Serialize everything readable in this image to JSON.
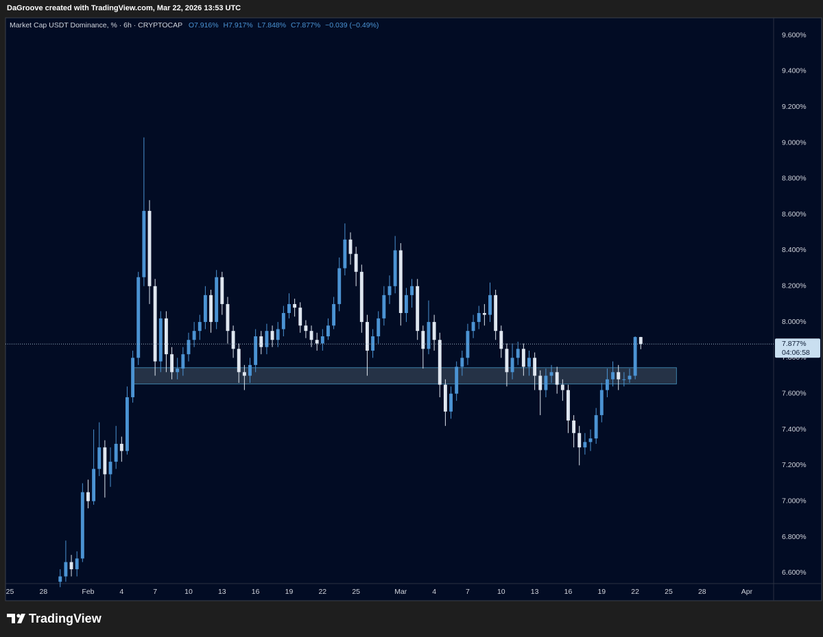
{
  "header": "DaGroove created with TradingView.com, Mar 22, 2026 13:53 UTC",
  "footer_brand": "TradingView",
  "chart_data": {
    "type": "candlestick",
    "title": "Market Cap USDT Dominance, % · 6h · CRYPTOCAP",
    "legend_values": [
      "O7.916%",
      "H7.917%",
      "L7.848%",
      "C7.877%",
      "−0.039 (−0.49%)"
    ],
    "up_color": "#4b93d3",
    "down_color": "#dfe6ef",
    "grid": false,
    "xlim": [
      -0.4,
      68.4
    ],
    "xticks": [
      {
        "value": 0,
        "label": "25"
      },
      {
        "value": 3,
        "label": "28"
      },
      {
        "value": 7,
        "label": "Feb"
      },
      {
        "value": 10,
        "label": "4"
      },
      {
        "value": 13,
        "label": "7"
      },
      {
        "value": 16,
        "label": "10"
      },
      {
        "value": 19,
        "label": "13"
      },
      {
        "value": 22,
        "label": "16"
      },
      {
        "value": 25,
        "label": "19"
      },
      {
        "value": 28,
        "label": "22"
      },
      {
        "value": 31,
        "label": "25"
      },
      {
        "value": 35,
        "label": "Mar"
      },
      {
        "value": 38,
        "label": "4"
      },
      {
        "value": 41,
        "label": "7"
      },
      {
        "value": 44,
        "label": "10"
      },
      {
        "value": 47,
        "label": "13"
      },
      {
        "value": 50,
        "label": "16"
      },
      {
        "value": 53,
        "label": "19"
      },
      {
        "value": 56,
        "label": "22"
      },
      {
        "value": 59,
        "label": "25"
      },
      {
        "value": 62,
        "label": "28"
      },
      {
        "value": 66,
        "label": "Apr"
      }
    ],
    "ylim": [
      6.54,
      9.69
    ],
    "yticks": [
      {
        "value": 6.6,
        "label": "6.600%"
      },
      {
        "value": 6.8,
        "label": "6.800%"
      },
      {
        "value": 7.0,
        "label": "7.000%"
      },
      {
        "value": 7.2,
        "label": "7.200%"
      },
      {
        "value": 7.4,
        "label": "7.400%"
      },
      {
        "value": 7.6,
        "label": "7.600%"
      },
      {
        "value": 7.8,
        "label": "7.800%"
      },
      {
        "value": 8.0,
        "label": "8.000%"
      },
      {
        "value": 8.2,
        "label": "8.200%"
      },
      {
        "value": 8.4,
        "label": "8.400%"
      },
      {
        "value": 8.6,
        "label": "8.600%"
      },
      {
        "value": 8.8,
        "label": "8.800%"
      },
      {
        "value": 9.0,
        "label": "9.000%"
      },
      {
        "value": 9.2,
        "label": "9.200%"
      },
      {
        "value": 9.4,
        "label": "9.400%"
      },
      {
        "value": 9.6,
        "label": "9.600%"
      }
    ],
    "last_price": {
      "value": 7.877,
      "label": "7.877%"
    },
    "countdown": "04:06:58",
    "zone": {
      "x": [
        11.1,
        59.7
      ],
      "y": [
        7.654,
        7.745
      ],
      "color": "#2b3a4c"
    },
    "x": [
      4.5,
      5,
      5.5,
      6,
      6.5,
      7,
      7.5,
      8,
      8.5,
      9,
      9.5,
      10,
      10.5,
      11,
      11.5,
      12,
      12.5,
      13,
      13.5,
      14,
      14.5,
      15,
      15.5,
      16,
      16.5,
      17,
      17.5,
      18,
      18.5,
      19,
      19.5,
      20,
      20.5,
      21,
      21.5,
      22,
      22.5,
      23,
      23.5,
      24,
      24.5,
      25,
      25.5,
      26,
      26.5,
      27,
      27.5,
      28,
      28.5,
      29,
      29.5,
      30,
      30.5,
      31,
      31.5,
      32,
      32.5,
      33,
      33.5,
      34,
      34.5,
      35,
      35.5,
      36,
      36.5,
      37,
      37.5,
      38,
      38.5,
      39,
      39.5,
      40,
      40.5,
      41,
      41.5,
      42,
      42.5,
      43,
      43.5,
      44,
      44.5,
      45,
      45.5,
      46,
      46.5,
      47,
      47.5,
      48,
      48.5,
      49,
      49.5,
      50,
      50.5,
      51,
      51.5,
      52,
      52.5,
      53,
      53.5,
      54,
      54.5,
      55,
      55.5,
      56,
      56.5
    ],
    "open": [
      6.55,
      6.58,
      6.66,
      6.62,
      6.68,
      7.05,
      7.0,
      7.18,
      7.3,
      7.15,
      7.22,
      7.32,
      7.28,
      7.58,
      7.8,
      8.25,
      8.62,
      8.2,
      7.78,
      8.02,
      7.82,
      7.72,
      7.74,
      7.82,
      7.9,
      7.95,
      8.0,
      8.15,
      8.0,
      8.25,
      8.1,
      7.95,
      7.85,
      7.72,
      7.7,
      7.76,
      7.92,
      7.86,
      7.95,
      7.9,
      7.96,
      8.05,
      8.1,
      8.08,
      7.98,
      7.95,
      7.9,
      7.88,
      7.92,
      7.98,
      8.1,
      8.3,
      8.46,
      8.38,
      8.28,
      8.0,
      7.84,
      7.92,
      8.02,
      8.15,
      8.2,
      8.4,
      8.05,
      8.15,
      8.2,
      7.95,
      7.85,
      8.0,
      7.9,
      7.65,
      7.5,
      7.6,
      7.75,
      7.8,
      7.95,
      8.0,
      8.05,
      8.04,
      8.15,
      7.95,
      7.85,
      7.72,
      7.8,
      7.85,
      7.75,
      7.8,
      7.7,
      7.62,
      7.7,
      7.72,
      7.65,
      7.62,
      7.45,
      7.38,
      7.3,
      7.33,
      7.35,
      7.48,
      7.62,
      7.68,
      7.72,
      7.68,
      7.68,
      7.7,
      7.916
    ],
    "high": [
      6.62,
      6.78,
      6.7,
      6.72,
      7.1,
      7.12,
      7.4,
      7.44,
      7.34,
      7.3,
      7.42,
      7.36,
      7.64,
      7.84,
      8.28,
      9.03,
      8.68,
      8.24,
      8.06,
      8.06,
      7.86,
      7.8,
      7.86,
      7.94,
      8.0,
      8.04,
      8.2,
      8.18,
      8.29,
      8.28,
      8.14,
      7.98,
      7.88,
      7.76,
      7.8,
      7.96,
      7.95,
      7.99,
      7.98,
      8.0,
      8.09,
      8.16,
      8.13,
      8.11,
      8.01,
      7.98,
      7.94,
      7.96,
      8.02,
      8.14,
      8.36,
      8.55,
      8.5,
      8.42,
      8.32,
      8.04,
      7.96,
      8.06,
      8.2,
      8.26,
      8.48,
      8.44,
      8.19,
      8.24,
      8.24,
      7.98,
      8.12,
      8.04,
      7.94,
      7.68,
      7.64,
      7.78,
      7.84,
      7.99,
      8.04,
      8.09,
      8.1,
      8.22,
      8.18,
      7.98,
      7.88,
      7.88,
      7.89,
      7.88,
      7.84,
      7.83,
      7.73,
      7.74,
      7.76,
      7.75,
      7.68,
      7.65,
      7.48,
      7.42,
      7.38,
      7.4,
      7.52,
      7.66,
      7.74,
      7.78,
      7.76,
      7.72,
      7.74,
      7.92,
      7.917
    ],
    "low": [
      6.52,
      6.55,
      6.58,
      6.58,
      6.66,
      6.96,
      6.98,
      7.14,
      7.02,
      7.08,
      7.18,
      7.22,
      7.26,
      7.55,
      7.76,
      8.2,
      8.1,
      7.7,
      7.72,
      7.72,
      7.68,
      7.68,
      7.7,
      7.78,
      7.86,
      7.9,
      7.96,
      7.94,
      7.96,
      8.04,
      7.88,
      7.8,
      7.66,
      7.62,
      7.66,
      7.72,
      7.82,
      7.82,
      7.86,
      7.86,
      7.92,
      8.02,
      8.03,
      7.94,
      7.91,
      7.86,
      7.84,
      7.84,
      7.9,
      7.96,
      8.06,
      8.26,
      8.32,
      8.2,
      7.94,
      7.7,
      7.8,
      7.88,
      7.98,
      8.1,
      8.16,
      7.98,
      8.0,
      8.08,
      7.9,
      7.74,
      7.82,
      7.84,
      7.58,
      7.42,
      7.46,
      7.56,
      7.7,
      7.76,
      7.91,
      7.96,
      7.98,
      8.0,
      7.9,
      7.8,
      7.64,
      7.68,
      7.76,
      7.7,
      7.7,
      7.62,
      7.48,
      7.58,
      7.66,
      7.6,
      7.56,
      7.38,
      7.3,
      7.2,
      7.26,
      7.28,
      7.32,
      7.44,
      7.58,
      7.64,
      7.62,
      7.64,
      7.66,
      7.68,
      7.848
    ],
    "close": [
      6.58,
      6.66,
      6.62,
      6.68,
      7.05,
      7.0,
      7.18,
      7.3,
      7.15,
      7.22,
      7.32,
      7.28,
      7.58,
      7.8,
      8.25,
      8.62,
      8.2,
      7.78,
      8.02,
      7.82,
      7.72,
      7.74,
      7.82,
      7.9,
      7.95,
      8.0,
      8.15,
      8.0,
      8.25,
      8.1,
      7.95,
      7.85,
      7.72,
      7.7,
      7.76,
      7.92,
      7.86,
      7.95,
      7.9,
      7.96,
      8.05,
      8.1,
      8.08,
      7.98,
      7.95,
      7.9,
      7.88,
      7.92,
      7.98,
      8.1,
      8.3,
      8.46,
      8.38,
      8.28,
      8.0,
      7.84,
      7.92,
      8.02,
      8.15,
      8.2,
      8.4,
      8.05,
      8.15,
      8.2,
      7.95,
      7.85,
      8.0,
      7.9,
      7.65,
      7.5,
      7.6,
      7.75,
      7.8,
      7.95,
      8.0,
      8.05,
      8.04,
      8.15,
      7.95,
      7.85,
      7.72,
      7.8,
      7.85,
      7.75,
      7.8,
      7.7,
      7.62,
      7.7,
      7.72,
      7.65,
      7.62,
      7.45,
      7.38,
      7.3,
      7.33,
      7.35,
      7.48,
      7.62,
      7.68,
      7.72,
      7.68,
      7.68,
      7.7,
      7.916,
      7.877
    ]
  }
}
